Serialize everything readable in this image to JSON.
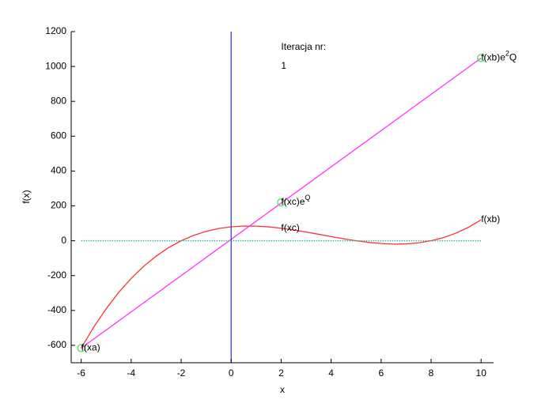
{
  "chart_data": {
    "type": "line",
    "xlabel": "x",
    "ylabel": "f(x)",
    "xlim": [
      -6.4,
      10.5
    ],
    "ylim": [
      -700,
      1200
    ],
    "xticks": [
      -6,
      -4,
      -2,
      0,
      2,
      4,
      6,
      8,
      10
    ],
    "yticks": [
      -600,
      -400,
      -200,
      0,
      200,
      400,
      600,
      800,
      1000,
      1200
    ],
    "series": [
      {
        "color": "#ff3030",
        "style": "solid",
        "x": [
          -6,
          -5.5,
          -5,
          -4.5,
          -4,
          -3.5,
          -3,
          -2.5,
          -2,
          -1.5,
          -1,
          -0.5,
          0,
          0.5,
          1,
          1.5,
          2,
          2.5,
          3,
          3.5,
          4,
          4.5,
          5,
          5.5,
          6,
          6.5,
          7,
          7.5,
          8,
          8.5,
          9,
          9.5,
          10
        ],
        "values": [
          -616,
          -496.125,
          -390,
          -296.875,
          -216,
          -146.625,
          -88,
          -39.375,
          0,
          30.875,
          54,
          70.125,
          80,
          84.375,
          84,
          79.625,
          72,
          61.875,
          50,
          37.125,
          24,
          11.375,
          0,
          -9.375,
          -16,
          -19.125,
          -18,
          -11.875,
          0,
          18.375,
          44,
          77.625,
          120
        ]
      },
      {
        "color": "#ff33ff",
        "style": "solid",
        "x": [
          -6,
          10
        ],
        "values": [
          -616,
          1048
        ]
      },
      {
        "color": "#3cb0a0",
        "style": "dotted",
        "x": [
          -6,
          10
        ],
        "values": [
          0,
          0
        ]
      },
      {
        "color": "#3040e0",
        "style": "solid",
        "x": [
          0,
          0
        ],
        "values": [
          -700,
          1200
        ]
      },
      {
        "color": "#40e040",
        "style": "markers",
        "x": [
          -6,
          2,
          10
        ],
        "values": [
          -616,
          220,
          1048
        ]
      }
    ],
    "annotations": [
      {
        "x": -6,
        "y": -616,
        "parts": [
          {
            "text": "f(xa)",
            "sup": false
          }
        ]
      },
      {
        "x": 2,
        "y": 72,
        "parts": [
          {
            "text": "f(xc)",
            "sup": false
          }
        ]
      },
      {
        "x": 10,
        "y": 120,
        "parts": [
          {
            "text": "f(xb)",
            "sup": false
          }
        ]
      },
      {
        "x": 2,
        "y": 220,
        "parts": [
          {
            "text": "f(xc)e",
            "sup": false
          },
          {
            "text": "Q",
            "sup": true
          }
        ]
      },
      {
        "x": 10,
        "y": 1048,
        "parts": [
          {
            "text": "f(xb)e",
            "sup": false
          },
          {
            "text": "2",
            "sup": true
          },
          {
            "text": "Q",
            "sup": false
          }
        ]
      },
      {
        "x": 2,
        "y": 1110,
        "parts": [
          {
            "text": "Iteracja nr:",
            "sup": false
          }
        ]
      },
      {
        "x": 2,
        "y": 1000,
        "parts": [
          {
            "text": "1",
            "sup": false
          }
        ]
      }
    ]
  }
}
